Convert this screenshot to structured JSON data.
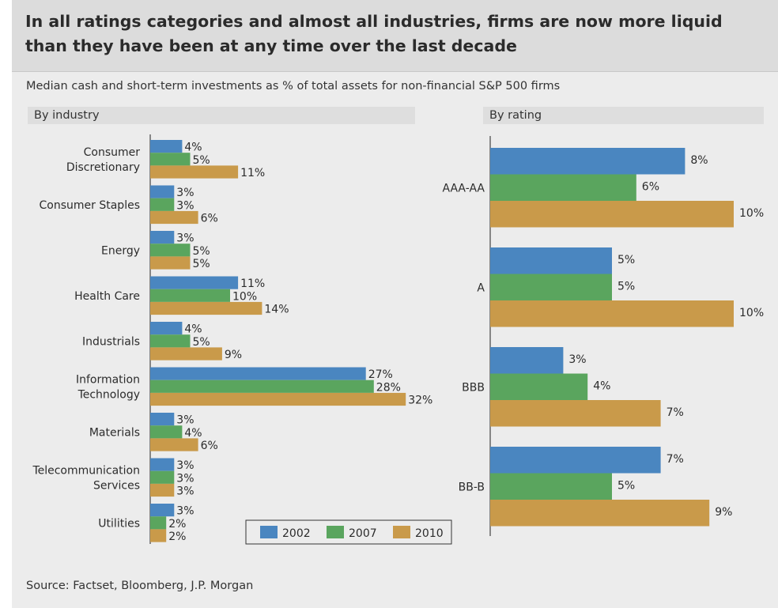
{
  "title": "In all ratings categories and almost all industries, firms are now more liquid than they have been at any time over the last decade",
  "subtitle": "Median cash and short-term investments as % of total assets for non-financial S&P 500 firms",
  "source": "Source: Factset, Bloomberg, J.P. Morgan",
  "colors": {
    "2002": "#4a86c0",
    "2007": "#5aa55e",
    "2010": "#c99a4a"
  },
  "chart_data": [
    {
      "type": "bar",
      "orientation": "horizontal",
      "title": "By industry",
      "categories": [
        [
          "Consumer",
          "Discretionary"
        ],
        [
          "Consumer Staples"
        ],
        [
          "Energy"
        ],
        [
          "Health Care"
        ],
        [
          "Industrials"
        ],
        [
          "Information",
          "Technology"
        ],
        [
          "Materials"
        ],
        [
          "Telecommunication",
          "Services"
        ],
        [
          "Utilities"
        ]
      ],
      "series": [
        {
          "name": "2002",
          "values": [
            4,
            3,
            3,
            11,
            4,
            27,
            3,
            3,
            3
          ]
        },
        {
          "name": "2007",
          "values": [
            5,
            3,
            5,
            10,
            5,
            28,
            4,
            3,
            2
          ]
        },
        {
          "name": "2010",
          "values": [
            11,
            6,
            5,
            14,
            9,
            32,
            6,
            3,
            2
          ]
        }
      ],
      "value_suffix": "%",
      "legend": "bottom-right",
      "grid": false
    },
    {
      "type": "bar",
      "orientation": "horizontal",
      "title": "By rating",
      "categories": [
        [
          "AAA-AA"
        ],
        [
          "A"
        ],
        [
          "BBB"
        ],
        [
          "BB-B"
        ]
      ],
      "series": [
        {
          "name": "2002",
          "values": [
            8,
            5,
            3,
            7
          ]
        },
        {
          "name": "2007",
          "values": [
            6,
            5,
            4,
            5
          ]
        },
        {
          "name": "2010",
          "values": [
            10,
            10,
            7,
            9
          ]
        }
      ],
      "value_suffix": "%",
      "grid": false
    }
  ]
}
